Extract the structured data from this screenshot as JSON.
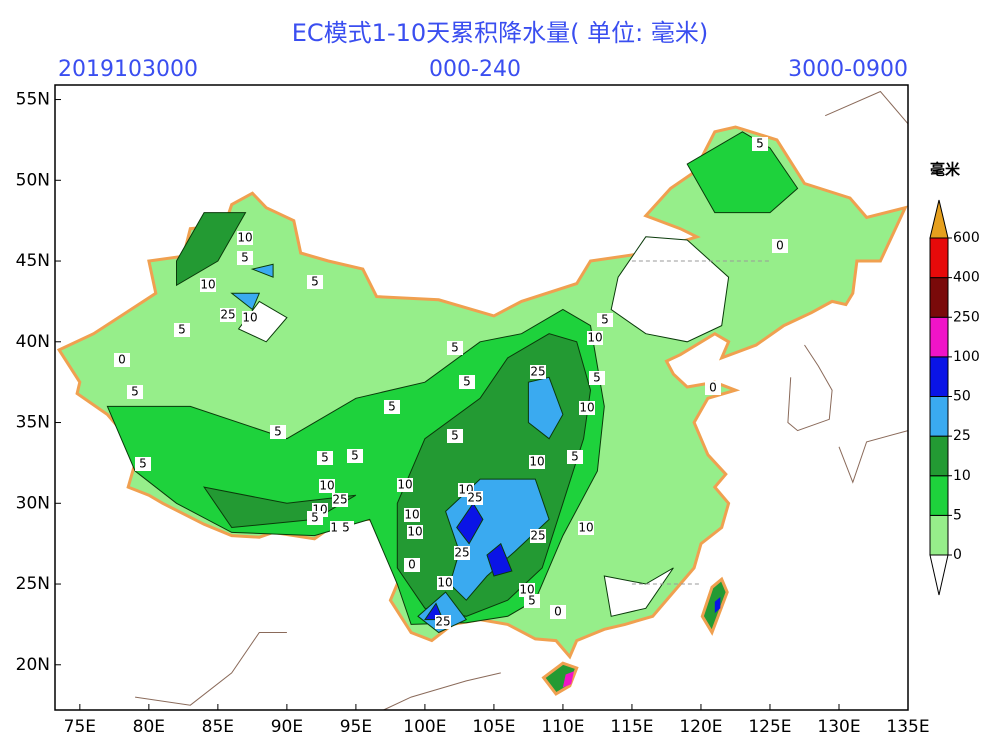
{
  "header": {
    "title": "EC模式1-10天累积降水量( 单位: 毫米)",
    "left": "2019103000",
    "center": "000-240",
    "right": "3000-0900"
  },
  "map": {
    "lon_range": [
      73.2,
      135
    ],
    "lat_range": [
      17.2,
      55.9
    ],
    "lon_ticks": [
      {
        "value": 75,
        "label": "75E"
      },
      {
        "value": 80,
        "label": "80E"
      },
      {
        "value": 85,
        "label": "85E"
      },
      {
        "value": 90,
        "label": "90E"
      },
      {
        "value": 95,
        "label": "95E"
      },
      {
        "value": 100,
        "label": "100E"
      },
      {
        "value": 105,
        "label": "105E"
      },
      {
        "value": 110,
        "label": "110E"
      },
      {
        "value": 115,
        "label": "115E"
      },
      {
        "value": 120,
        "label": "120E"
      },
      {
        "value": 125,
        "label": "125E"
      },
      {
        "value": 130,
        "label": "130E"
      },
      {
        "value": 135,
        "label": "135E"
      }
    ],
    "lat_ticks": [
      {
        "value": 20,
        "label": "20N"
      },
      {
        "value": 25,
        "label": "25N"
      },
      {
        "value": 30,
        "label": "30N"
      },
      {
        "value": 35,
        "label": "35N"
      },
      {
        "value": 40,
        "label": "40N"
      },
      {
        "value": 45,
        "label": "45N"
      },
      {
        "value": 50,
        "label": "50N"
      },
      {
        "value": 55,
        "label": "55N"
      }
    ],
    "contour_labels": [
      10,
      5,
      10,
      25,
      10,
      5,
      5,
      0,
      5,
      5,
      10,
      5,
      5,
      25,
      5,
      10,
      5,
      5,
      5,
      5,
      5,
      10,
      5,
      10,
      10,
      10,
      25,
      25,
      10,
      5,
      10,
      5,
      10,
      10,
      25,
      10,
      25,
      0,
      10,
      10,
      5,
      0,
      25,
      0,
      0,
      5,
      5
    ]
  },
  "legend": {
    "unit": "毫米",
    "levels": [
      0,
      5,
      10,
      25,
      50,
      100,
      250,
      400,
      600
    ],
    "colors": [
      "#96ee8a",
      "#1ed23c",
      "#239a33",
      "#3aaaf0",
      "#0a14e6",
      "#f014c8",
      "#7a0a0a",
      "#e60a0a"
    ],
    "under_color": "#ffffff",
    "over_color": "#e6a01e"
  }
}
